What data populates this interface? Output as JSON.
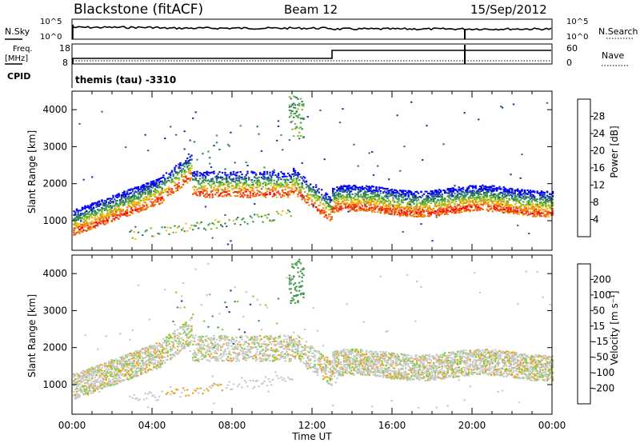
{
  "header": {
    "title": "Blackstone (fitACF)",
    "beam": "Beam 12",
    "date": "15/Sep/2012"
  },
  "noise_panel": {
    "left_label": "N.Sky",
    "left_ticks": [
      "10^5",
      "10^0"
    ],
    "right_label": "N.Search",
    "right_ticks": [
      "10^5",
      "10^0"
    ]
  },
  "freq_panel": {
    "left_label_1": "Freq.",
    "left_label_2": "[MHz]",
    "left_ticks": [
      "18",
      "8"
    ],
    "right_label": "Nave",
    "right_ticks": [
      "60",
      "0"
    ],
    "cpid_label": "CPID",
    "cpid_value": "themis (tau) -3310"
  },
  "chart_data": [
    {
      "type": "heatmap",
      "name": "power",
      "ylabel": "Slant Range [km]",
      "yticks": [
        "1000",
        "2000",
        "3000",
        "4000"
      ],
      "ylim": [
        200,
        4500
      ],
      "xlim": [
        0,
        24
      ],
      "colorbar_label": "Power [dB]",
      "colorbar_ticks": [
        "28",
        "24",
        "20",
        "16",
        "12",
        "8",
        "4"
      ],
      "colorbar_colors": [
        "#0000ff",
        "#1f3fa0",
        "#2e7a6a",
        "#3f9a4a",
        "#7cbb2a",
        "#f0c010",
        "#f08a10",
        "#ee4a10",
        "#ff0000"
      ]
    },
    {
      "type": "heatmap",
      "name": "velocity",
      "ylabel": "Slant Range [km]",
      "yticks": [
        "1000",
        "2000",
        "3000",
        "4000"
      ],
      "ylim": [
        200,
        4500
      ],
      "xlim": [
        0,
        24
      ],
      "xticks": [
        "00:00",
        "04:00",
        "08:00",
        "12:00",
        "16:00",
        "20:00",
        "00:00"
      ],
      "xlabel": "Time UT",
      "colorbar_label": "Velocity [m s⁻¹]",
      "colorbar_ticks": [
        "200",
        "100",
        "50",
        "15",
        "-15",
        "-50",
        "-100",
        "-200"
      ],
      "colorbar_colors": [
        "#ff0000",
        "#ee3a10",
        "#f07a10",
        "#f0a010",
        "#c8c8c8",
        "#c8c8c8",
        "#7ccf3a",
        "#3f9a4a",
        "#1f6a9a",
        "#1f3fa0"
      ]
    }
  ]
}
